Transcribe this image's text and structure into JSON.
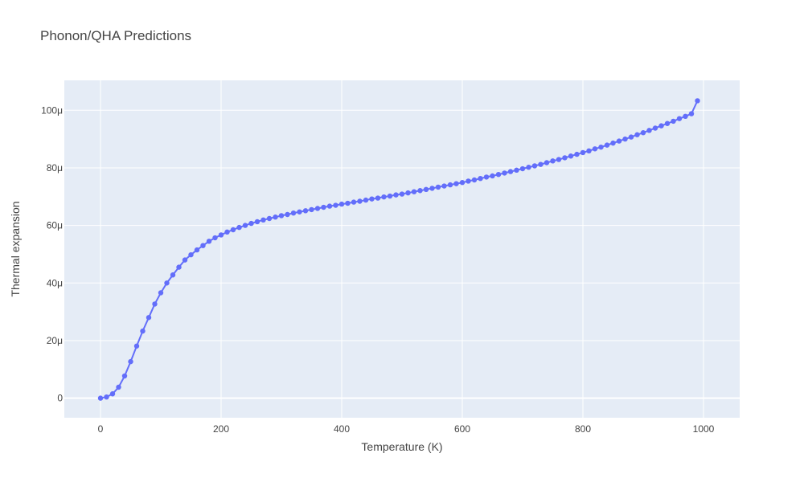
{
  "chart_data": {
    "type": "line",
    "title": "Phonon/QHA Predictions",
    "xlabel": "Temperature (K)",
    "ylabel": "Thermal expansion",
    "xlim": [
      -60,
      1060
    ],
    "ylim": [
      -6.8e-06,
      0.0001104
    ],
    "x_ticks": [
      0,
      200,
      400,
      600,
      800,
      1000
    ],
    "x_tick_labels": [
      "0",
      "200",
      "400",
      "600",
      "800",
      "1000"
    ],
    "y_ticks": [
      0,
      2e-05,
      4e-05,
      6e-05,
      8e-05,
      0.0001
    ],
    "y_tick_labels": [
      "0",
      "20μ",
      "40μ",
      "60μ",
      "80μ",
      "100μ"
    ],
    "grid": true,
    "legend": false,
    "colors": {
      "series": "#636efa",
      "plot_bg": "#e5ecf6",
      "grid": "#ffffff",
      "text": "#444444"
    },
    "series": [
      {
        "mode": "lines+markers",
        "x": [
          0,
          10,
          20,
          30,
          40,
          50,
          60,
          70,
          80,
          90,
          100,
          110,
          120,
          130,
          140,
          150,
          160,
          170,
          180,
          190,
          200,
          210,
          220,
          230,
          240,
          250,
          260,
          270,
          280,
          290,
          300,
          310,
          320,
          330,
          340,
          350,
          360,
          370,
          380,
          390,
          400,
          410,
          420,
          430,
          440,
          450,
          460,
          470,
          480,
          490,
          500,
          510,
          520,
          530,
          540,
          550,
          560,
          570,
          580,
          590,
          600,
          610,
          620,
          630,
          640,
          650,
          660,
          670,
          680,
          690,
          700,
          710,
          720,
          730,
          740,
          750,
          760,
          770,
          780,
          790,
          800,
          810,
          820,
          830,
          840,
          850,
          860,
          870,
          880,
          890,
          900,
          910,
          920,
          930,
          940,
          950,
          960,
          970,
          980,
          990
        ],
        "y": [
          0,
          4e-07,
          1.5e-06,
          3.8e-06,
          7.7e-06,
          1.27e-05,
          1.81e-05,
          2.33e-05,
          2.8e-05,
          3.27e-05,
          3.66e-05,
          4e-05,
          4.28e-05,
          4.55e-05,
          4.8e-05,
          4.98e-05,
          5.15e-05,
          5.3e-05,
          5.45e-05,
          5.57e-05,
          5.67e-05,
          5.77e-05,
          5.85e-05,
          5.93e-05,
          6e-05,
          6.07e-05,
          6.13e-05,
          6.19e-05,
          6.24e-05,
          6.29e-05,
          6.34e-05,
          6.38e-05,
          6.43e-05,
          6.47e-05,
          6.51e-05,
          6.55e-05,
          6.59e-05,
          6.63e-05,
          6.67e-05,
          6.7e-05,
          6.74e-05,
          6.77e-05,
          6.81e-05,
          6.84e-05,
          6.88e-05,
          6.92e-05,
          6.95e-05,
          6.99e-05,
          7.02e-05,
          7.06e-05,
          7.09e-05,
          7.13e-05,
          7.17e-05,
          7.21e-05,
          7.25e-05,
          7.29e-05,
          7.33e-05,
          7.37e-05,
          7.41e-05,
          7.45e-05,
          7.49e-05,
          7.54e-05,
          7.58e-05,
          7.63e-05,
          7.68e-05,
          7.72e-05,
          7.77e-05,
          7.82e-05,
          7.87e-05,
          7.92e-05,
          7.97e-05,
          8.02e-05,
          8.07e-05,
          8.12e-05,
          8.18e-05,
          8.24e-05,
          8.29e-05,
          8.35e-05,
          8.41e-05,
          8.47e-05,
          8.53e-05,
          8.59e-05,
          8.66e-05,
          8.72e-05,
          8.79e-05,
          8.86e-05,
          8.93e-05,
          9e-05,
          9.07e-05,
          9.15e-05,
          9.22e-05,
          9.3e-05,
          9.38e-05,
          9.46e-05,
          9.54e-05,
          9.62e-05,
          9.71e-05,
          9.79e-05,
          9.88e-05,
          0.0001033
        ]
      }
    ]
  }
}
